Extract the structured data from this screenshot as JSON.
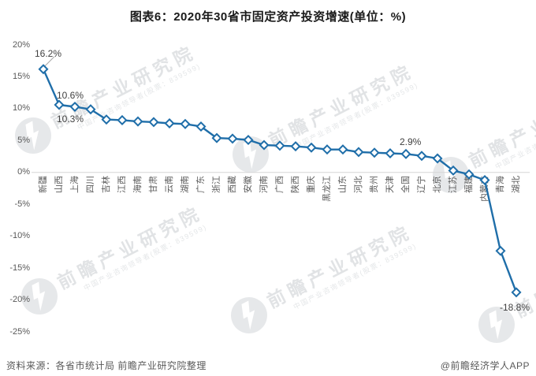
{
  "title": "图表6：2020年30省市固定资产投资增速(单位：%)",
  "chart_data": {
    "type": "line",
    "title": "图表6：2020年30省市固定资产投资增速(单位：%)",
    "unit": "%",
    "categories": [
      "新疆",
      "山西",
      "上海",
      "四川",
      "吉林",
      "江西",
      "海南",
      "甘肃",
      "云南",
      "湖南",
      "广东",
      "浙江",
      "西藏",
      "安徽",
      "河南",
      "广西",
      "陕西",
      "重庆",
      "黑龙江",
      "山东",
      "河北",
      "贵州",
      "天津",
      "全国",
      "辽宁",
      "北京",
      "江苏",
      "福建",
      "内蒙古",
      "青海",
      "湖北"
    ],
    "values": [
      16.2,
      10.6,
      10.3,
      9.9,
      8.3,
      8.2,
      8.0,
      7.9,
      7.7,
      7.6,
      7.2,
      5.4,
      5.3,
      5.1,
      4.3,
      4.2,
      4.1,
      3.9,
      3.6,
      3.6,
      3.2,
      3.1,
      3.0,
      2.9,
      2.6,
      2.2,
      0.3,
      -0.3,
      -1.2,
      -12.3,
      -18.8
    ],
    "y_ticks": [
      "20%",
      "15%",
      "10%",
      "5%",
      "0%",
      "-5%",
      "-10%",
      "-15%",
      "-20%",
      "-25%"
    ],
    "ylim": [
      -25,
      20
    ],
    "grid": "zero-line-only",
    "legend": "none",
    "line_color": "#1f6ea9",
    "marker": "diamond-open",
    "marker_fill": "#ffffff",
    "annotations": [
      {
        "category": "新疆",
        "label": "16.2%"
      },
      {
        "category": "山西",
        "label": "10.6%"
      },
      {
        "category": "上海",
        "label": "10.3%"
      },
      {
        "category": "全国",
        "label": "2.9%"
      },
      {
        "category": "湖北",
        "label": "-18.8%"
      }
    ]
  },
  "watermark": {
    "main": "前瞻产业研究院",
    "sub": "中国产业咨询领导者(股票：839599)"
  },
  "footer": {
    "source": "资料来源：各省市统计局 前瞻产业研究院整理",
    "brand": "@前瞻经济学人APP"
  }
}
